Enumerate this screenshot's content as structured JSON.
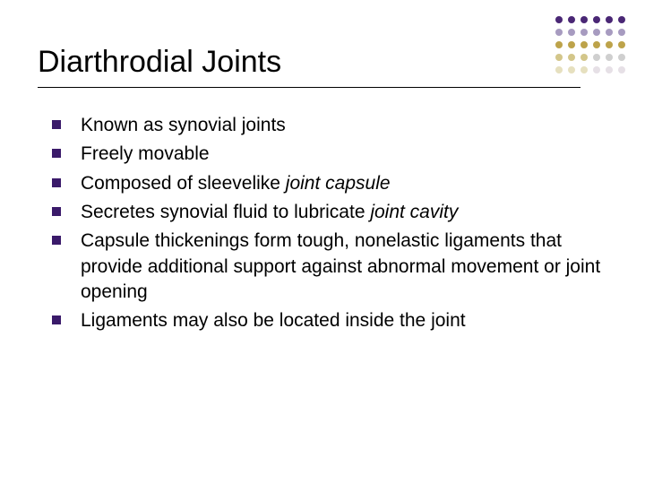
{
  "title": "Diarthrodial Joints",
  "bullets": [
    {
      "text": "Known as synovial joints"
    },
    {
      "text": "Freely movable"
    },
    {
      "prefix": "Composed of sleevelike ",
      "italic": "joint capsule"
    },
    {
      "prefix": "Secretes synovial fluid to lubricate ",
      "italic": "joint cavity"
    },
    {
      "text": "Capsule thickenings form tough, nonelastic ligaments that provide additional support against abnormal movement or joint opening"
    },
    {
      "text": "Ligaments may also be located inside the joint"
    }
  ],
  "decoration": {
    "bullet_color": "#3a1a6a",
    "dot_rows": [
      [
        "#4a2775",
        "#4a2775",
        "#4a2775",
        "#4a2775",
        "#4a2775",
        "#4a2775"
      ],
      [
        "#a79bc0",
        "#a79bc0",
        "#a79bc0",
        "#a79bc0",
        "#a79bc0",
        "#a79bc0"
      ],
      [
        "#bda34a",
        "#bda34a",
        "#bda34a",
        "#bda34a",
        "#bda34a",
        "#bda34a"
      ],
      [
        "#d3c68a",
        "#d3c68a",
        "#d3c68a",
        "#cfcfcf",
        "#cfcfcf",
        "#cfcfcf"
      ],
      [
        "#e6e0bf",
        "#e6e0bf",
        "#e6e0bf",
        "#e6e0e6",
        "#e6e0e6",
        "#e6e0e6"
      ]
    ]
  }
}
